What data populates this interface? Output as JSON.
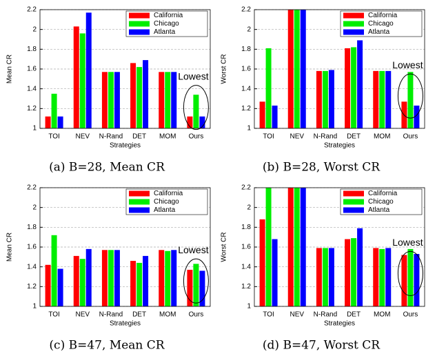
{
  "chart_data": [
    {
      "type": "bar",
      "caption": "(a) B=28, Mean CR",
      "xlabel": "Strategies",
      "ylabel": "Mean CR",
      "annotation": "Lowest",
      "categories": [
        "TOI",
        "NEV",
        "N-Rand",
        "DET",
        "MOM",
        "Ours"
      ],
      "series": [
        {
          "name": "California",
          "color": "#ff0000",
          "values": [
            1.12,
            2.03,
            1.57,
            1.66,
            1.57,
            1.12
          ]
        },
        {
          "name": "Chicago",
          "color": "#00ee00",
          "values": [
            1.35,
            1.96,
            1.57,
            1.62,
            1.57,
            1.34
          ]
        },
        {
          "name": "Atlanta",
          "color": "#0000ff",
          "values": [
            1.12,
            2.17,
            1.57,
            1.69,
            1.57,
            1.12
          ]
        }
      ],
      "ylim": [
        1,
        2.2
      ],
      "yticks": [
        1,
        1.2,
        1.4,
        1.6,
        1.8,
        2,
        2.2
      ],
      "grid": true,
      "legend": "upper-right"
    },
    {
      "type": "bar",
      "caption": "(b) B=28, Worst CR",
      "xlabel": "Strategies",
      "ylabel": "Worst CR",
      "annotation": "Lowest",
      "categories": [
        "TOI",
        "NEV",
        "N-Rand",
        "DET",
        "MOM",
        "Ours"
      ],
      "series": [
        {
          "name": "California",
          "color": "#ff0000",
          "values": [
            1.27,
            2.2,
            1.58,
            1.81,
            1.58,
            1.27
          ]
        },
        {
          "name": "Chicago",
          "color": "#00ee00",
          "values": [
            1.81,
            2.2,
            1.58,
            1.82,
            1.58,
            1.57
          ]
        },
        {
          "name": "Atlanta",
          "color": "#0000ff",
          "values": [
            1.23,
            2.2,
            1.59,
            1.89,
            1.58,
            1.23
          ]
        }
      ],
      "ylim": [
        1,
        2.2
      ],
      "yticks": [
        1,
        1.2,
        1.4,
        1.6,
        1.8,
        2,
        2.2
      ],
      "grid": true,
      "legend": "upper-right"
    },
    {
      "type": "bar",
      "caption": "(c) B=47, Mean CR",
      "xlabel": "Strategies",
      "ylabel": "Mean CR",
      "annotation": "Lowest",
      "categories": [
        "TOI",
        "NEV",
        "N-Rand",
        "DET",
        "MOM",
        "Ours"
      ],
      "series": [
        {
          "name": "California",
          "color": "#ff0000",
          "values": [
            1.42,
            1.51,
            1.57,
            1.46,
            1.57,
            1.37
          ]
        },
        {
          "name": "Chicago",
          "color": "#00ee00",
          "values": [
            1.72,
            1.48,
            1.57,
            1.44,
            1.56,
            1.43
          ]
        },
        {
          "name": "Atlanta",
          "color": "#0000ff",
          "values": [
            1.38,
            1.58,
            1.57,
            1.51,
            1.57,
            1.36
          ]
        }
      ],
      "ylim": [
        1,
        2.2
      ],
      "yticks": [
        1,
        1.2,
        1.4,
        1.6,
        1.8,
        2,
        2.2
      ],
      "grid": true,
      "legend": "upper-right"
    },
    {
      "type": "bar",
      "caption": "(d) B=47, Worst CR",
      "xlabel": "Strategies",
      "ylabel": "Worst CR",
      "annotation": "Lowest",
      "categories": [
        "TOI",
        "NEV",
        "N-Rand",
        "DET",
        "MOM",
        "Ours"
      ],
      "series": [
        {
          "name": "California",
          "color": "#ff0000",
          "values": [
            1.88,
            2.2,
            1.59,
            1.68,
            1.59,
            1.52
          ]
        },
        {
          "name": "Chicago",
          "color": "#00ee00",
          "values": [
            2.2,
            2.2,
            1.59,
            1.69,
            1.58,
            1.58
          ]
        },
        {
          "name": "Atlanta",
          "color": "#0000ff",
          "values": [
            1.68,
            2.2,
            1.59,
            1.79,
            1.59,
            1.53
          ]
        }
      ],
      "ylim": [
        1,
        2.2
      ],
      "yticks": [
        1,
        1.2,
        1.4,
        1.6,
        1.8,
        2,
        2.2
      ],
      "grid": true,
      "legend": "upper-right"
    }
  ]
}
